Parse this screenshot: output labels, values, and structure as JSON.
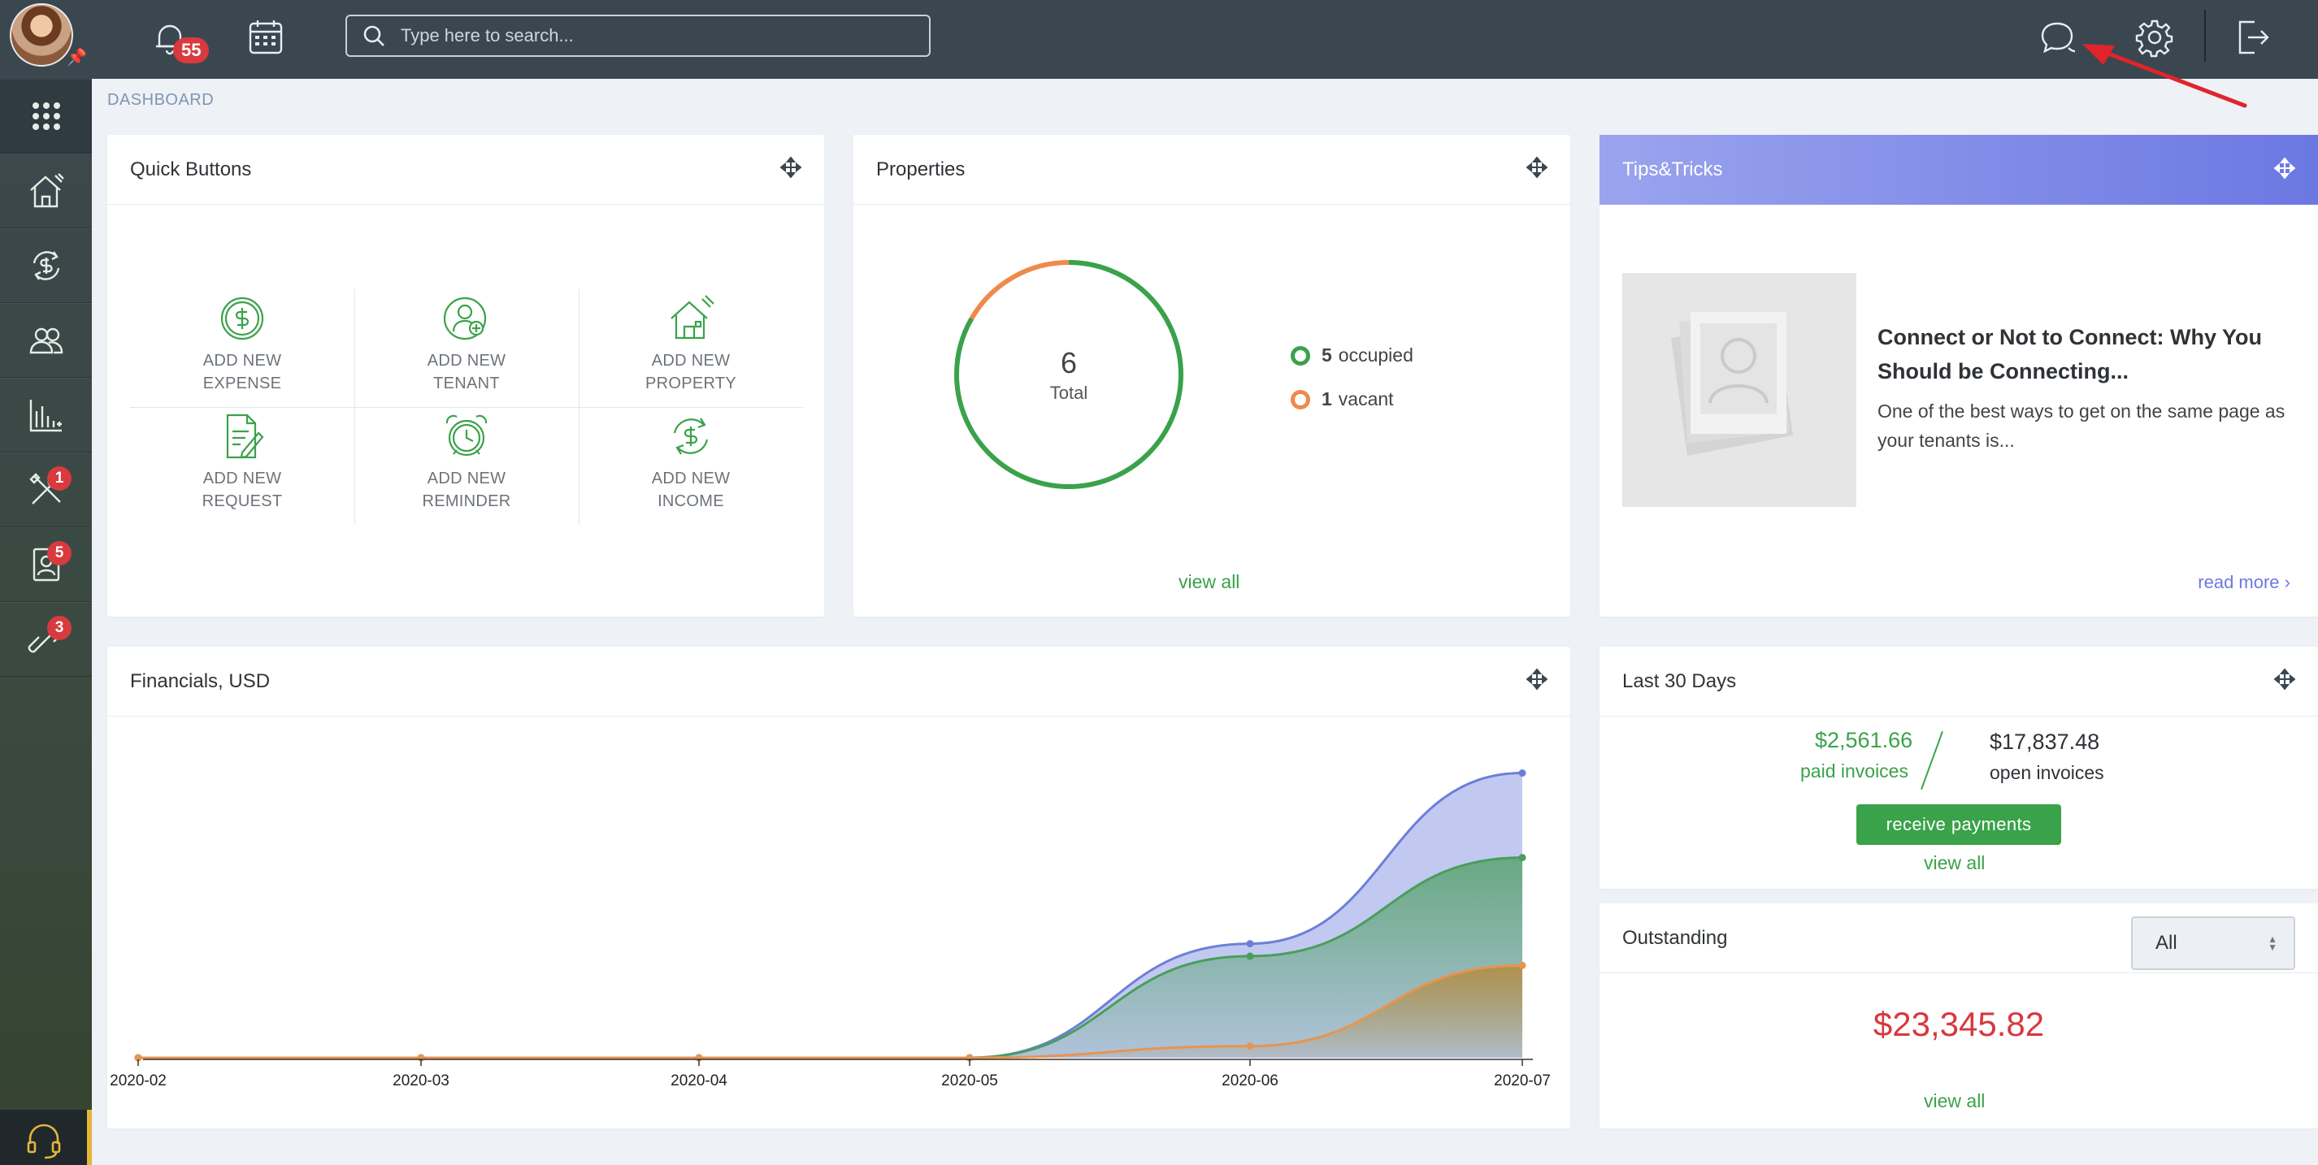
{
  "topbar": {
    "notifications_count": "55",
    "search_placeholder": "Type here to search..."
  },
  "sidebar": {
    "badges": {
      "maintenance": "1",
      "contacts": "5",
      "links": "3"
    }
  },
  "breadcrumb": "DASHBOARD",
  "quick_buttons": {
    "title": "Quick Buttons",
    "items": [
      {
        "label": "ADD NEW\nEXPENSE",
        "icon": "dollar-icon"
      },
      {
        "label": "ADD NEW\nTENANT",
        "icon": "add-tenant-icon"
      },
      {
        "label": "ADD NEW\nPROPERTY",
        "icon": "house-icon"
      },
      {
        "label": "ADD NEW\nREQUEST",
        "icon": "request-icon"
      },
      {
        "label": "ADD NEW\nREMINDER",
        "icon": "alarm-clock-icon"
      },
      {
        "label": "ADD NEW\nINCOME",
        "icon": "income-icon"
      }
    ]
  },
  "properties": {
    "title": "Properties",
    "total": "6",
    "total_label": "Total",
    "occupied_count": "5",
    "occupied_label": "occupied",
    "vacant_count": "1",
    "vacant_label": "vacant",
    "occupied_fraction": 0.833,
    "view_all": "view all",
    "colors": {
      "occupied": "#3aa24a",
      "vacant": "#ee8a4a"
    }
  },
  "tips": {
    "title": "Tips&Tricks",
    "article_title": "Connect or Not to Connect: Why You Should be Connecting...",
    "article_text": "One of the best ways to get on the same page as your tenants is...",
    "read_more": "read more"
  },
  "financials": {
    "title": "Financials, USD"
  },
  "chart_data": {
    "type": "area",
    "categories": [
      "2020-02",
      "2020-03",
      "2020-04",
      "2020-05",
      "2020-06",
      "2020-07"
    ],
    "series": [
      {
        "values": [
          0,
          0,
          0,
          0,
          14700,
          36700
        ],
        "color": "#6c7fd8"
      },
      {
        "values": [
          0,
          0,
          0,
          0,
          13100,
          25800
        ],
        "color": "#4a9e5c"
      },
      {
        "values": [
          0,
          0,
          0,
          0,
          1500,
          11900
        ],
        "color": "#e8944f"
      }
    ],
    "ylim": [
      0,
      40000
    ],
    "grid": false
  },
  "last30": {
    "title": "Last 30 Days",
    "paid_amount": "$2,561.66",
    "paid_label": "paid invoices",
    "open_amount": "$17,837.48",
    "open_label": "open invoices",
    "receive_button": "receive payments",
    "view_all": "view all"
  },
  "outstanding": {
    "title": "Outstanding",
    "filter_value": "All",
    "amount": "$23,345.82",
    "view_all": "view all"
  }
}
